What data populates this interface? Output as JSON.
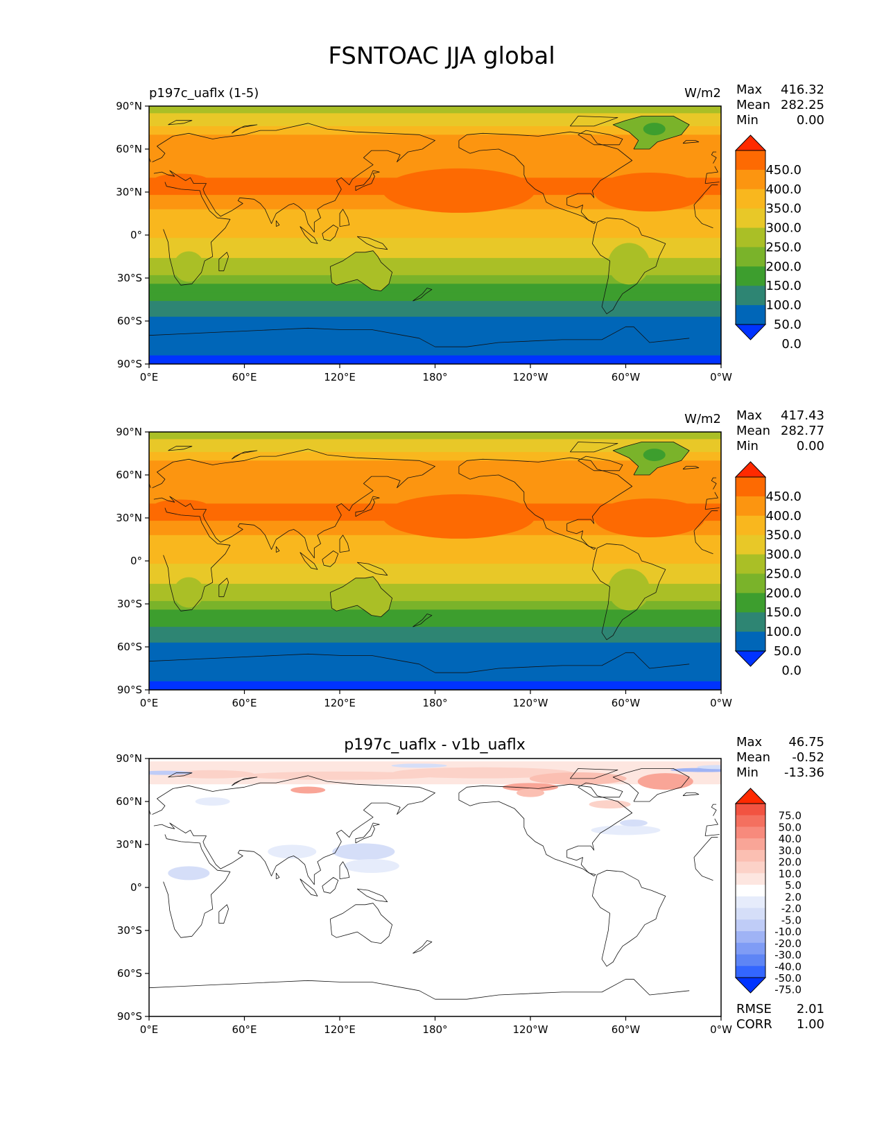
{
  "figure": {
    "title": "FSNTOAC JJA global"
  },
  "axis_labels": {
    "lon": [
      "0°E",
      "60°E",
      "120°E",
      "180°",
      "120°W",
      "60°W",
      "0°W"
    ],
    "lat": [
      "90°N",
      "60°N",
      "30°N",
      "0°",
      "30°S",
      "60°S",
      "90°S"
    ]
  },
  "stat_labels": {
    "max": "Max",
    "mean": "Mean",
    "min": "Min"
  },
  "panels": [
    {
      "id": "test",
      "left_title": "p197c_uaflx (1-5)",
      "center_title": "",
      "units": "W/m2",
      "stats": {
        "max": "416.32",
        "mean": "282.25",
        "min": "0.00"
      },
      "colorbar_labels": [
        "450.0",
        "400.0",
        "350.0",
        "300.0",
        "250.0",
        "200.0",
        "150.0",
        "100.0",
        "50.0",
        "0.0"
      ]
    },
    {
      "id": "reference",
      "left_title": "",
      "center_title": "",
      "units": "W/m2",
      "stats": {
        "max": "417.43",
        "mean": "282.77",
        "min": "0.00"
      },
      "colorbar_labels": [
        "450.0",
        "400.0",
        "350.0",
        "300.0",
        "250.0",
        "200.0",
        "150.0",
        "100.0",
        "50.0",
        "0.0"
      ]
    },
    {
      "id": "difference",
      "left_title": "",
      "center_title": "p197c_uaflx - v1b_uaflx",
      "units": "",
      "stats": {
        "max": "46.75",
        "mean": "-0.52",
        "min": "-13.36"
      },
      "colorbar_labels": [
        "75.0",
        "50.0",
        "40.0",
        "30.0",
        "20.0",
        "10.0",
        "5.0",
        "2.0",
        "-2.0",
        "-5.0",
        "-10.0",
        "-20.0",
        "-30.0",
        "-40.0",
        "-50.0",
        "-75.0"
      ],
      "metrics": {
        "rmse_label": "RMSE",
        "rmse": "2.01",
        "corr_label": "CORR",
        "corr": "1.00"
      }
    }
  ],
  "colors": {
    "field_scale": [
      "#0033ff",
      "#0066b8",
      "#2e8573",
      "#3d9e2e",
      "#7ab32a",
      "#aabf26",
      "#e8c828",
      "#f9b71e",
      "#fc9510",
      "#fd6a02",
      "#ff2a00"
    ],
    "diff_scale": [
      "#0033ff",
      "#3366ff",
      "#5e85f5",
      "#7f9cf5",
      "#9fb3f5",
      "#bfccf7",
      "#d5def8",
      "#e6ecfb",
      "#ffffff",
      "#fde6e0",
      "#fcd2c8",
      "#fbbfb2",
      "#f9a597",
      "#f78a7c",
      "#f4705f",
      "#f25341",
      "#ff2a00"
    ]
  }
}
